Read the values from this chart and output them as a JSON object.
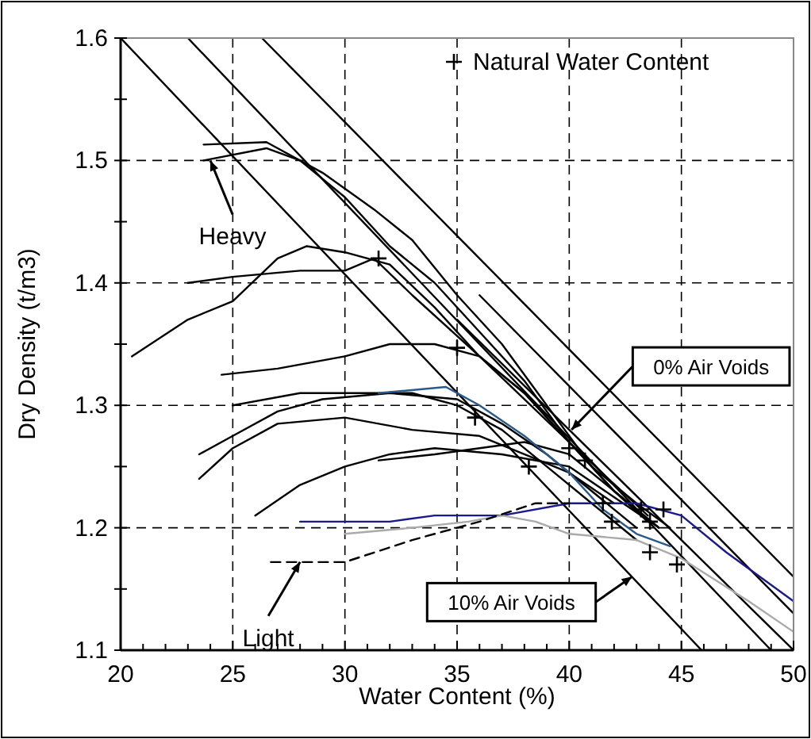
{
  "chart_data": {
    "type": "line",
    "xlabel": "Water Content (%)",
    "ylabel": "Dry Density (t/m3)",
    "xlim": [
      20,
      50
    ],
    "ylim": [
      1.1,
      1.6
    ],
    "xticks": [
      20,
      {
        "value": 21,
        "label": null
      },
      {
        "value": 22,
        "label": null
      },
      {
        "value": 23,
        "label": null
      },
      {
        "value": 24,
        "label": null
      },
      25,
      {
        "value": 26,
        "label": null
      },
      {
        "value": 27,
        "label": null
      },
      {
        "value": 28,
        "label": null
      },
      {
        "value": 29,
        "label": null
      },
      30,
      {
        "value": 31,
        "label": null
      },
      {
        "value": 32,
        "label": null
      },
      {
        "value": 33,
        "label": null
      },
      {
        "value": 34,
        "label": null
      },
      35,
      {
        "value": 36,
        "label": null
      },
      {
        "value": 37,
        "label": null
      },
      {
        "value": 38,
        "label": null
      },
      {
        "value": 39,
        "label": null
      },
      40,
      {
        "value": 41,
        "label": null
      },
      {
        "value": 42,
        "label": null
      },
      {
        "value": 43,
        "label": null
      },
      {
        "value": 44,
        "label": null
      },
      45,
      {
        "value": 46,
        "label": null
      },
      {
        "value": 47,
        "label": null
      },
      {
        "value": 48,
        "label": null
      },
      {
        "value": 49,
        "label": null
      },
      50
    ],
    "yticks": [
      {
        "value": 1.1,
        "label": "1.1"
      },
      {
        "value": 1.15,
        "label": null
      },
      {
        "value": 1.2,
        "label": "1.2"
      },
      {
        "value": 1.25,
        "label": null
      },
      {
        "value": 1.3,
        "label": "1.3"
      },
      {
        "value": 1.35,
        "label": null
      },
      {
        "value": 1.4,
        "label": "1.4"
      },
      {
        "value": 1.45,
        "label": null
      },
      {
        "value": 1.5,
        "label": "1.5"
      },
      {
        "value": 1.55,
        "label": null
      },
      {
        "value": 1.6,
        "label": "1.6"
      }
    ],
    "grid": true,
    "legend": "top right",
    "marker": "none",
    "line_style": "solid",
    "series": [
      {
        "color": "#000000",
        "x": [
          20,
          45.9
        ],
        "values": [
          1.6,
          1.1
        ]
      },
      {
        "color": "#000000",
        "x": [
          23,
          49
        ],
        "values": [
          1.6,
          1.1
        ]
      },
      {
        "type": "line",
        "color": "#000000",
        "x": [
          26.3,
          50
        ],
        "values": [
          1.6,
          1.16
        ]
      },
      {
        "type": "line",
        "color": "#000000",
        "x": [
          35,
          50
        ],
        "values": [
          1.37,
          1.1
        ]
      },
      {
        "type": "line",
        "color": "#000000",
        "x": [
          36,
          50
        ],
        "values": [
          1.39,
          1.13
        ]
      },
      {
        "type": "line",
        "color": "#000000",
        "x": [
          23.7,
          26.5,
          29,
          31.3,
          33,
          35,
          37,
          39,
          41,
          43,
          44.5
        ],
        "values": [
          1.513,
          1.515,
          1.49,
          1.46,
          1.435,
          1.39,
          1.35,
          1.3,
          1.25,
          1.22,
          1.2
        ]
      },
      {
        "type": "line",
        "color": "#000000",
        "x": [
          23.7,
          26.5,
          28,
          30,
          32,
          34,
          36,
          38,
          40,
          42,
          43.5
        ],
        "values": [
          1.5,
          1.51,
          1.5,
          1.47,
          1.43,
          1.4,
          1.36,
          1.32,
          1.27,
          1.23,
          1.205
        ]
      },
      {
        "type": "line",
        "color": "#000000",
        "x": [
          20.5,
          23,
          25,
          27,
          28.3,
          30,
          32,
          34,
          36,
          38,
          40,
          42,
          44
        ],
        "values": [
          1.34,
          1.37,
          1.385,
          1.42,
          1.43,
          1.425,
          1.415,
          1.38,
          1.34,
          1.31,
          1.27,
          1.23,
          1.2
        ]
      },
      {
        "type": "line",
        "color": "#000000",
        "x": [
          23,
          25,
          28,
          30,
          31.3,
          33,
          36,
          40,
          43.5
        ],
        "values": [
          1.4,
          1.405,
          1.41,
          1.41,
          1.42,
          1.39,
          1.34,
          1.27,
          1.21
        ]
      },
      {
        "type": "line",
        "color": "#000000",
        "x": [
          24.5,
          27,
          30,
          32,
          34,
          36,
          38,
          40,
          42,
          44
        ],
        "values": [
          1.325,
          1.33,
          1.34,
          1.35,
          1.35,
          1.34,
          1.31,
          1.27,
          1.23,
          1.2
        ]
      },
      {
        "type": "line",
        "color": "#000000",
        "x": [
          25,
          28,
          30,
          33,
          35,
          37,
          39,
          41,
          43
        ],
        "values": [
          1.3,
          1.31,
          1.31,
          1.31,
          1.3,
          1.28,
          1.25,
          1.22,
          1.19
        ]
      },
      {
        "type": "line",
        "color": "#000000",
        "x": [
          23.5,
          25,
          27,
          29,
          32,
          35,
          37,
          39,
          41,
          43
        ],
        "values": [
          1.26,
          1.275,
          1.295,
          1.305,
          1.31,
          1.305,
          1.285,
          1.26,
          1.23,
          1.2
        ]
      },
      {
        "type": "line",
        "color": "#000000",
        "x": [
          23.5,
          25,
          27,
          30,
          33,
          36,
          38,
          40,
          42
        ],
        "values": [
          1.24,
          1.265,
          1.285,
          1.29,
          1.28,
          1.275,
          1.26,
          1.245,
          1.22
        ]
      },
      {
        "type": "line",
        "color": "#000000",
        "x": [
          26,
          28,
          30,
          32,
          34,
          37,
          40,
          42,
          44
        ],
        "values": [
          1.21,
          1.235,
          1.25,
          1.26,
          1.265,
          1.26,
          1.25,
          1.225,
          1.2
        ]
      },
      {
        "type": "line",
        "color": "#000000",
        "x": [
          31.5,
          34,
          36,
          38,
          40,
          42
        ],
        "values": [
          1.255,
          1.26,
          1.265,
          1.27,
          1.26,
          1.23
        ]
      },
      {
        "type": "line",
        "color": "#2a5a8c",
        "x": [
          31.5,
          34.5,
          36,
          38,
          40,
          41.5,
          43,
          44.5
        ],
        "values": [
          1.31,
          1.315,
          1.3,
          1.275,
          1.245,
          1.215,
          1.195,
          1.185
        ]
      },
      {
        "type": "line",
        "color": "#1a1a8c",
        "x": [
          28,
          32,
          34,
          37,
          40,
          43,
          45,
          47,
          50
        ],
        "values": [
          1.205,
          1.205,
          1.21,
          1.21,
          1.22,
          1.22,
          1.21,
          1.18,
          1.14
        ]
      },
      {
        "type": "line",
        "color": "#aaaaaa",
        "x": [
          30,
          33,
          35.5,
          37,
          38.5,
          40,
          43,
          45,
          48,
          50
        ],
        "values": [
          1.195,
          1.2,
          1.205,
          1.21,
          1.205,
          1.195,
          1.19,
          1.175,
          1.14,
          1.115
        ]
      },
      {
        "type": "line",
        "color": "#000000",
        "line_style": "dashed",
        "x": [
          26.7,
          30,
          33,
          36,
          38.5,
          40
        ],
        "values": [
          1.172,
          1.172,
          1.19,
          1.205,
          1.22,
          1.22
        ]
      },
      {
        "type": "scatter",
        "name": "Natural Water Content",
        "color": "#000000",
        "marker": "cross",
        "x": [
          31.5,
          35,
          35.8,
          38.2,
          40,
          40.7,
          41.5,
          41.9,
          43.2,
          43.6,
          44.2,
          43.6,
          44.8
        ],
        "values": [
          1.42,
          1.347,
          1.29,
          1.25,
          1.265,
          1.255,
          1.22,
          1.205,
          1.215,
          1.205,
          1.215,
          1.18,
          1.17
        ]
      }
    ],
    "annotations": [
      {
        "text": "Heavy",
        "x": 24,
        "y": 1.5
      },
      {
        "text": "Light",
        "x": 28,
        "y": 1.172
      },
      {
        "text": "0% Air Voids",
        "x": 40.1,
        "y": 1.28
      },
      {
        "text": "10% Air Voids",
        "x": 42.8,
        "y": 1.16
      }
    ]
  }
}
